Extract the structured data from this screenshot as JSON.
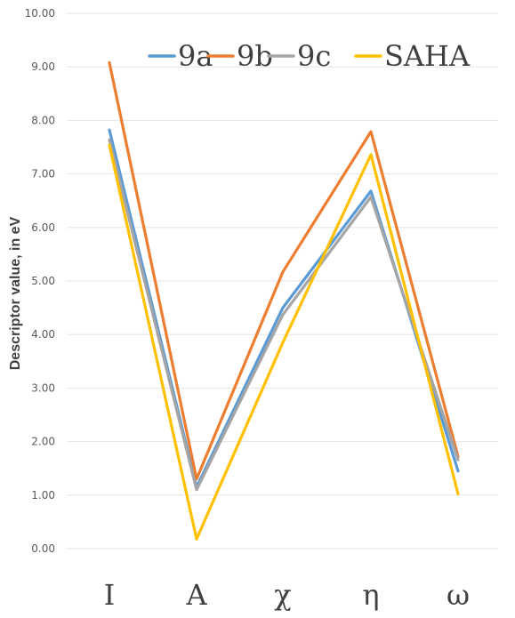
{
  "chart_data": {
    "type": "line",
    "categories": [
      "I",
      "A",
      "χ",
      "η",
      "ω"
    ],
    "series": [
      {
        "name": "9a",
        "color": "#5b9bd5",
        "values": [
          7.82,
          1.15,
          4.5,
          6.68,
          1.45
        ]
      },
      {
        "name": "9b",
        "color": "#ed7d31",
        "values": [
          9.08,
          1.3,
          5.17,
          7.79,
          1.72
        ]
      },
      {
        "name": "9c",
        "color": "#a5a5a5",
        "values": [
          7.64,
          1.1,
          4.37,
          6.57,
          1.66
        ]
      },
      {
        "name": "SAHA",
        "color": "#ffc000",
        "values": [
          7.54,
          0.18,
          3.85,
          7.36,
          1.02
        ]
      }
    ],
    "ylabel": "Descriptor value, in eV",
    "xlabel": "",
    "ylim": [
      0,
      10
    ],
    "yticks": [
      "0.00",
      "1.00",
      "2.00",
      "3.00",
      "4.00",
      "5.00",
      "6.00",
      "7.00",
      "8.00",
      "9.00",
      "10.00"
    ],
    "grid": true,
    "legend_position": "top-right"
  }
}
